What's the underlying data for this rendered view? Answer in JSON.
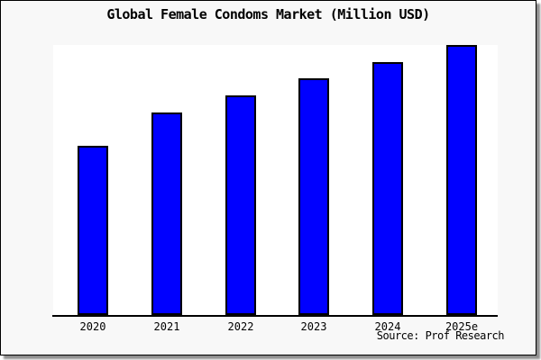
{
  "page": {
    "background": "#f8f8f8",
    "border_color": "#000000",
    "shadow_color": "#8f8f8f"
  },
  "chart": {
    "title": "Global Female Condoms Market (Million USD)",
    "source_note": "Source: Prof Research",
    "colors": {
      "bar_fill": "#0000ff",
      "bar_border": "#000000",
      "plot_background": "#ffffff",
      "axis": "#000000",
      "text": "#000000"
    }
  },
  "chart_data": {
    "type": "bar",
    "title": "Global Female Condoms Market (Million USD)",
    "categories": [
      "2020",
      "2021",
      "2022",
      "2023",
      "2024",
      "2025e"
    ],
    "values": [
      188,
      225,
      244,
      263,
      281,
      300
    ],
    "values_note": "no y-axis scale shown; values are relative bar heights (tallest bar = 300)",
    "xlabel": "",
    "ylabel": "",
    "ylim": [
      0,
      300
    ],
    "grid": false,
    "legend": false,
    "annotation": "Source: Prof Research"
  }
}
